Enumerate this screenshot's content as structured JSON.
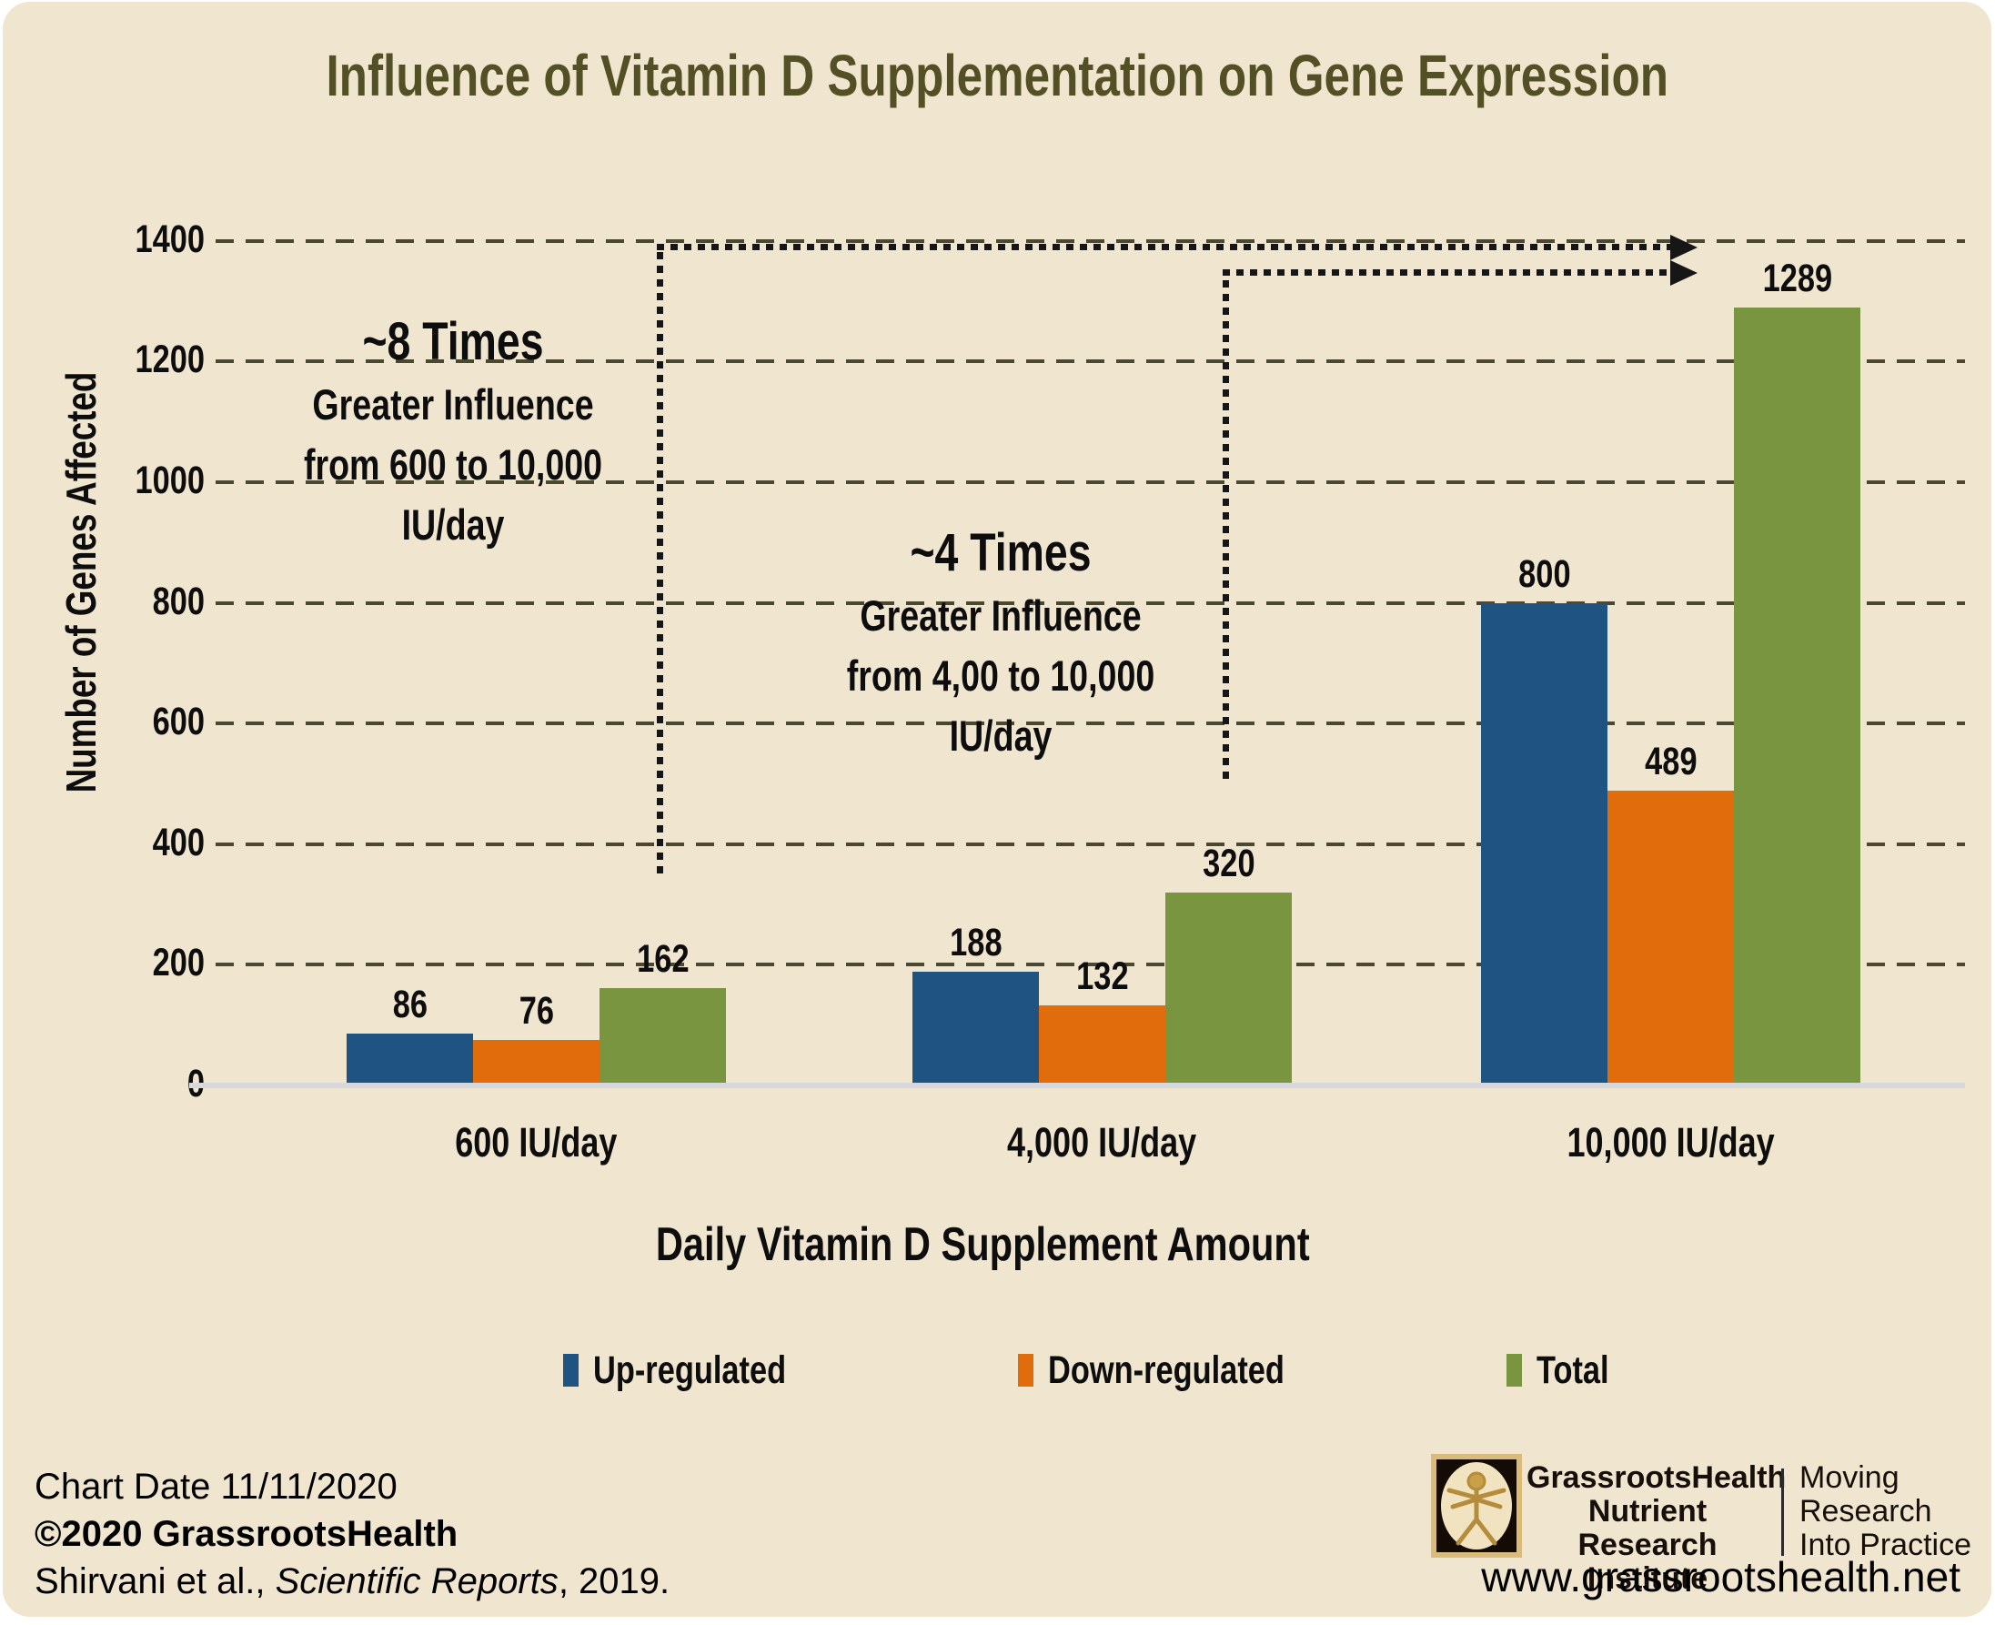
{
  "page": {
    "title": "Influence of Vitamin D Supplementation on Gene Expression",
    "title_color": "#545026",
    "panel_bg": "#f0e5cf",
    "baseline_color": "#d7d8de",
    "arrow_color": "#161616"
  },
  "chart_data": {
    "type": "bar",
    "title": "Influence of Vitamin D Supplementation on Gene Expression",
    "categories": [
      "600 IU/day",
      "4,000 IU/day",
      "10,000 IU/day"
    ],
    "series": [
      {
        "name": "Up-regulated",
        "color": "#1f5382",
        "values": [
          86,
          188,
          800
        ]
      },
      {
        "name": "Down-regulated",
        "color": "#e16c0c",
        "values": [
          76,
          132,
          489
        ]
      },
      {
        "name": "Total",
        "color": "#799540",
        "values": [
          162,
          320,
          1289
        ]
      }
    ],
    "xlabel": "Daily Vitamin D Supplement Amount",
    "ylabel": "Number of Genes Affected",
    "ylim": [
      0,
      1400
    ],
    "ytick_step": 200,
    "grid": "horizontal-dashed",
    "grid_color": "#4b4832",
    "legend_position": "bottom",
    "annotations": [
      {
        "lines": [
          "~8 Times",
          "Greater Influence",
          "from 600 to 10,000",
          "IU/day"
        ],
        "meaning": "arrow from top of 600 IU/day Total bar up to 1289 level"
      },
      {
        "lines": [
          "~4 Times",
          "Greater Influence",
          "from 4,00 to 10,000",
          "IU/day"
        ],
        "meaning": "arrow from top of 4,000 IU/day Total bar up to 1289 level"
      }
    ]
  },
  "footer": {
    "chart_date": "Chart Date 11/11/2020",
    "copyright": "©2020 GrassrootsHealth",
    "citation_prefix": "Shirvani et al., ",
    "citation_italic": "Scientific Reports",
    "citation_suffix": ", 2019.",
    "brand_lines": [
      "GrassrootsHealth",
      "Nutrient",
      "Research Institute"
    ],
    "tagline_lines": [
      "Moving",
      "Research",
      "Into Practice"
    ],
    "website": "www.grassrootshealth.net"
  }
}
